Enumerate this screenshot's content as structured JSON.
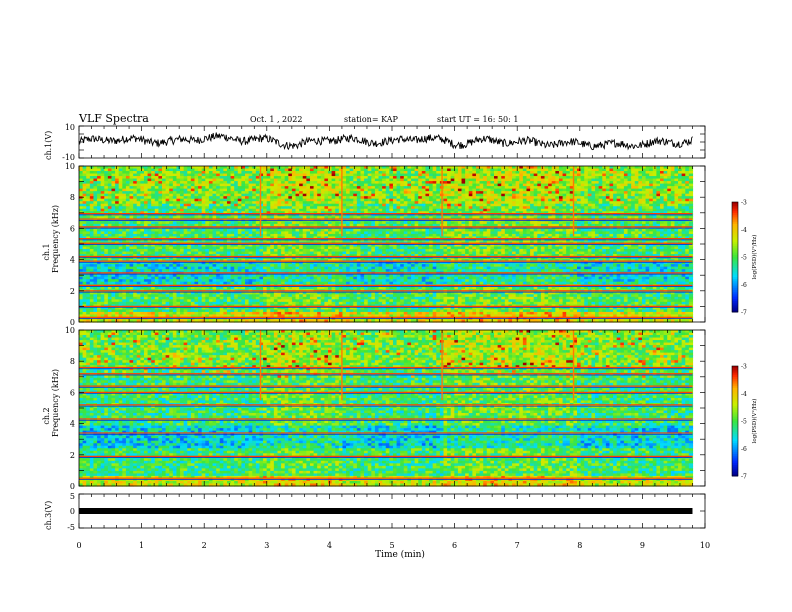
{
  "header": {
    "title": "VLF Spectra",
    "date": "Oct. 1  , 2022",
    "station": "station= KAP",
    "start": "start  UT  =   16: 50: 1"
  },
  "chart_data": [
    {
      "type": "line",
      "panel": "ch1-voltage",
      "ylabel": "ch.1(V)",
      "ylim": [
        -10,
        10
      ],
      "yticks": [
        "10",
        "-10"
      ],
      "xlim": [
        0,
        10
      ],
      "x": [
        0,
        0.5,
        1,
        1.5,
        2,
        2.5,
        3,
        3.5,
        4,
        4.5,
        5,
        5.5,
        6,
        6.5,
        7,
        7.5,
        8,
        8.5,
        9,
        9.5,
        9.8
      ],
      "y": [
        0,
        2,
        1,
        0,
        3,
        2,
        1,
        -2,
        2,
        1,
        0,
        3,
        -1,
        1,
        0,
        -1,
        -1,
        -2,
        -1,
        0,
        1
      ]
    },
    {
      "type": "heatmap",
      "panel": "ch1-spectrogram",
      "ylabel_top": "ch.1",
      "ylabel": "Frequency  (kHz)",
      "ylim": [
        0,
        10
      ],
      "yticks": [
        "0",
        "2",
        "4",
        "6",
        "8",
        "10"
      ],
      "xlim": [
        0,
        10
      ],
      "colorbar": {
        "label": "log(PSD)(V²/Hz)",
        "range": [
          -7,
          -3
        ],
        "ticks": [
          "-3",
          "-4",
          "-5",
          "-6",
          "-7"
        ]
      },
      "time_segments_min": [
        0,
        2.9,
        4.2,
        5.8,
        7.9,
        9.8
      ],
      "lines_khz": [
        0.3,
        1.0,
        2.0,
        2.35,
        3.15,
        3.9,
        4.2,
        5.05,
        5.35,
        6.1,
        6.6,
        6.95
      ]
    },
    {
      "type": "heatmap",
      "panel": "ch2-spectrogram",
      "ylabel_top": "ch.2",
      "ylabel": "Frequency  (kHz)",
      "ylim": [
        0,
        10
      ],
      "yticks": [
        "0",
        "2",
        "4",
        "6",
        "8",
        "10"
      ],
      "xlim": [
        0,
        10
      ],
      "colorbar": {
        "label": "log(PSD)(V²/Hz)",
        "range": [
          -7,
          -3
        ],
        "ticks": [
          "-3",
          "-4",
          "-5",
          "-6",
          "-7"
        ]
      },
      "time_segments_min": [
        0,
        2.9,
        4.2,
        5.8,
        7.9,
        9.8
      ],
      "lines_khz": [
        0.5,
        1.9,
        3.4,
        4.3,
        5.2,
        6.0,
        6.4,
        7.2,
        7.6
      ]
    },
    {
      "type": "line",
      "panel": "ch3-voltage",
      "ylabel": "ch.3(V)",
      "ylim": [
        -5,
        5
      ],
      "yticks": [
        "5",
        "0",
        "-5"
      ],
      "xlim": [
        0,
        10
      ],
      "x": [
        0,
        9.8
      ],
      "y": [
        0,
        0
      ]
    }
  ],
  "xaxis": {
    "label": "Time  (min)",
    "ticks": [
      "0",
      "1",
      "2",
      "3",
      "4",
      "5",
      "6",
      "7",
      "8",
      "9",
      "10"
    ]
  },
  "colors": {
    "line": "#000000",
    "background": "#ffffff"
  }
}
